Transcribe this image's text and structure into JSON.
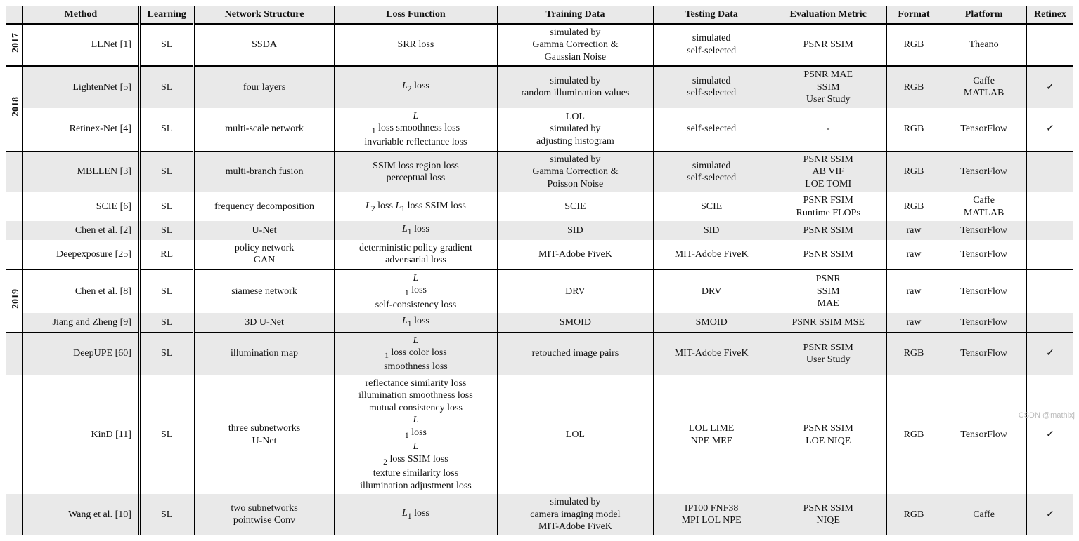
{
  "columns": {
    "method": "Method",
    "learning": "Learning",
    "network": "Network Structure",
    "loss": "Loss Function",
    "train": "Training Data",
    "test": "Testing Data",
    "metric": "Evaluation Metric",
    "format": "Format",
    "platform": "Platform",
    "retinex": "Retinex"
  },
  "col_widths": {
    "year": "22px",
    "method": "150px",
    "learning": "70px",
    "network": "180px",
    "loss": "210px",
    "train": "200px",
    "test": "150px",
    "metric": "150px",
    "format": "70px",
    "platform": "110px",
    "retinex": "60px"
  },
  "years": {
    "y2017": "2017",
    "y2018": "2018",
    "y2019": "2019"
  },
  "rows": {
    "r1": {
      "method": "LLNet [1]",
      "learning": "SL",
      "network": "SSDA",
      "loss": "SRR loss",
      "train1": "simulated by",
      "train2": "Gamma Correction &",
      "train3": "Gaussian Noise",
      "test1": "simulated",
      "test2": "self-selected",
      "metric": "PSNR SSIM",
      "format": "RGB",
      "platform": "Theano",
      "retinex": ""
    },
    "r2": {
      "method": "LightenNet [5]",
      "learning": "SL",
      "network": "four layers",
      "loss_html": "<span class='sub'>L</span><sub>2</sub> loss",
      "train1": "simulated by",
      "train2": "random illumination values",
      "test1": "simulated",
      "test2": "self-selected",
      "metric1": "PSNR MAE",
      "metric2": "SSIM",
      "metric3": "User Study",
      "format": "RGB",
      "platform1": "Caffe",
      "platform2": "MATLAB",
      "retinex": "✓"
    },
    "r3": {
      "method": "Retinex-Net [4]",
      "learning": "SL",
      "network": "multi-scale network",
      "loss1_html": "<span class='sub'>L</span><sub>1</sub> loss smoothness loss",
      "loss2": "invariable reflectance loss",
      "train1": "LOL",
      "train2": "simulated by",
      "train3": "adjusting histogram",
      "test": "self-selected",
      "metric": "-",
      "format": "RGB",
      "platform": "TensorFlow",
      "retinex": "✓"
    },
    "r4": {
      "method": "MBLLEN [3]",
      "learning": "SL",
      "network": "multi-branch fusion",
      "loss1": "SSIM loss region loss",
      "loss2": "perceptual loss",
      "train1": "simulated by",
      "train2": "Gamma Correction &",
      "train3": "Poisson Noise",
      "test1": "simulated",
      "test2": "self-selected",
      "metric1": "PSNR SSIM",
      "metric2": "AB VIF",
      "metric3": "LOE TOMI",
      "format": "RGB",
      "platform": "TensorFlow",
      "retinex": ""
    },
    "r5": {
      "method": "SCIE [6]",
      "learning": "SL",
      "network": "frequency decomposition",
      "loss_html": "<span class='sub'>L</span><sub>2</sub> loss <span class='sub'>L</span><sub>1</sub> loss SSIM loss",
      "train": "SCIE",
      "test": "SCIE",
      "metric1": "PSNR FSIM",
      "metric2": "Runtime FLOPs",
      "format": "RGB",
      "platform1": "Caffe",
      "platform2": "MATLAB",
      "retinex": ""
    },
    "r6": {
      "method": "Chen et al. [2]",
      "learning": "SL",
      "network": "U-Net",
      "loss_html": "<span class='sub'>L</span><sub>1</sub> loss",
      "train": "SID",
      "test": "SID",
      "metric": "PSNR SSIM",
      "format": "raw",
      "platform": "TensorFlow",
      "retinex": ""
    },
    "r7": {
      "method": "Deepexposure [25]",
      "learning": "RL",
      "network1": "policy network",
      "network2": "GAN",
      "loss1": "deterministic policy gradient",
      "loss2": "adversarial loss",
      "train": "MIT-Adobe FiveK",
      "test": "MIT-Adobe FiveK",
      "metric": "PSNR SSIM",
      "format": "raw",
      "platform": "TensorFlow",
      "retinex": ""
    },
    "r8": {
      "method": "Chen et al. [8]",
      "learning": "SL",
      "network": "siamese network",
      "loss1_html": "<span class='sub'>L</span><sub>1</sub> loss",
      "loss2": "self-consistency loss",
      "train": "DRV",
      "test": "DRV",
      "metric1": "PSNR",
      "metric2": "SSIM",
      "metric3": "MAE",
      "format": "raw",
      "platform": "TensorFlow",
      "retinex": ""
    },
    "r9": {
      "method": "Jiang and Zheng [9]",
      "learning": "SL",
      "network": "3D U-Net",
      "loss_html": "<span class='sub'>L</span><sub>1</sub> loss",
      "train": "SMOID",
      "test": "SMOID",
      "metric": "PSNR SSIM MSE",
      "format": "raw",
      "platform": "TensorFlow",
      "retinex": ""
    },
    "r10": {
      "method": "DeepUPE [60]",
      "learning": "SL",
      "network": "illumination map",
      "loss1_html": "<span class='sub'>L</span><sub>1</sub> loss color loss",
      "loss2": "smoothness loss",
      "train": "retouched image pairs",
      "test": "MIT-Adobe FiveK",
      "metric1": "PSNR SSIM",
      "metric2": "User Study",
      "format": "RGB",
      "platform": "TensorFlow",
      "retinex": "✓"
    },
    "r11": {
      "method": "KinD [11]",
      "learning": "SL",
      "network1": "three subnetworks",
      "network2": "U-Net",
      "loss1": "reflectance similarity loss",
      "loss2": "illumination smoothness loss",
      "loss3": "mutual consistency loss",
      "loss4_html": "<span class='sub'>L</span><sub>1</sub> loss <span class='sub'>L</span><sub>2</sub> loss SSIM loss",
      "loss5": "texture similarity loss",
      "loss6": "illumination adjustment loss",
      "train": "LOL",
      "test1": "LOL LIME",
      "test2": "NPE MEF",
      "metric1": "PSNR SSIM",
      "metric2": "LOE NIQE",
      "format": "RGB",
      "platform": "TensorFlow",
      "retinex": "✓"
    },
    "r12": {
      "method": "Wang et al. [10]",
      "learning": "SL",
      "network1": "two subnetworks",
      "network2": "pointwise Conv",
      "loss_html": "<span class='sub'>L</span><sub>1</sub> loss",
      "train1": "simulated by",
      "train2": "camera imaging model",
      "train3": "MIT-Adobe FiveK",
      "test1": "IP100 FNF38",
      "test2": "MPI LOL NPE",
      "metric1": "PSNR SSIM",
      "metric2": "NIQE",
      "format": "RGB",
      "platform": "Caffe",
      "retinex": "✓"
    }
  },
  "watermark": "CSDN @mathlxj"
}
